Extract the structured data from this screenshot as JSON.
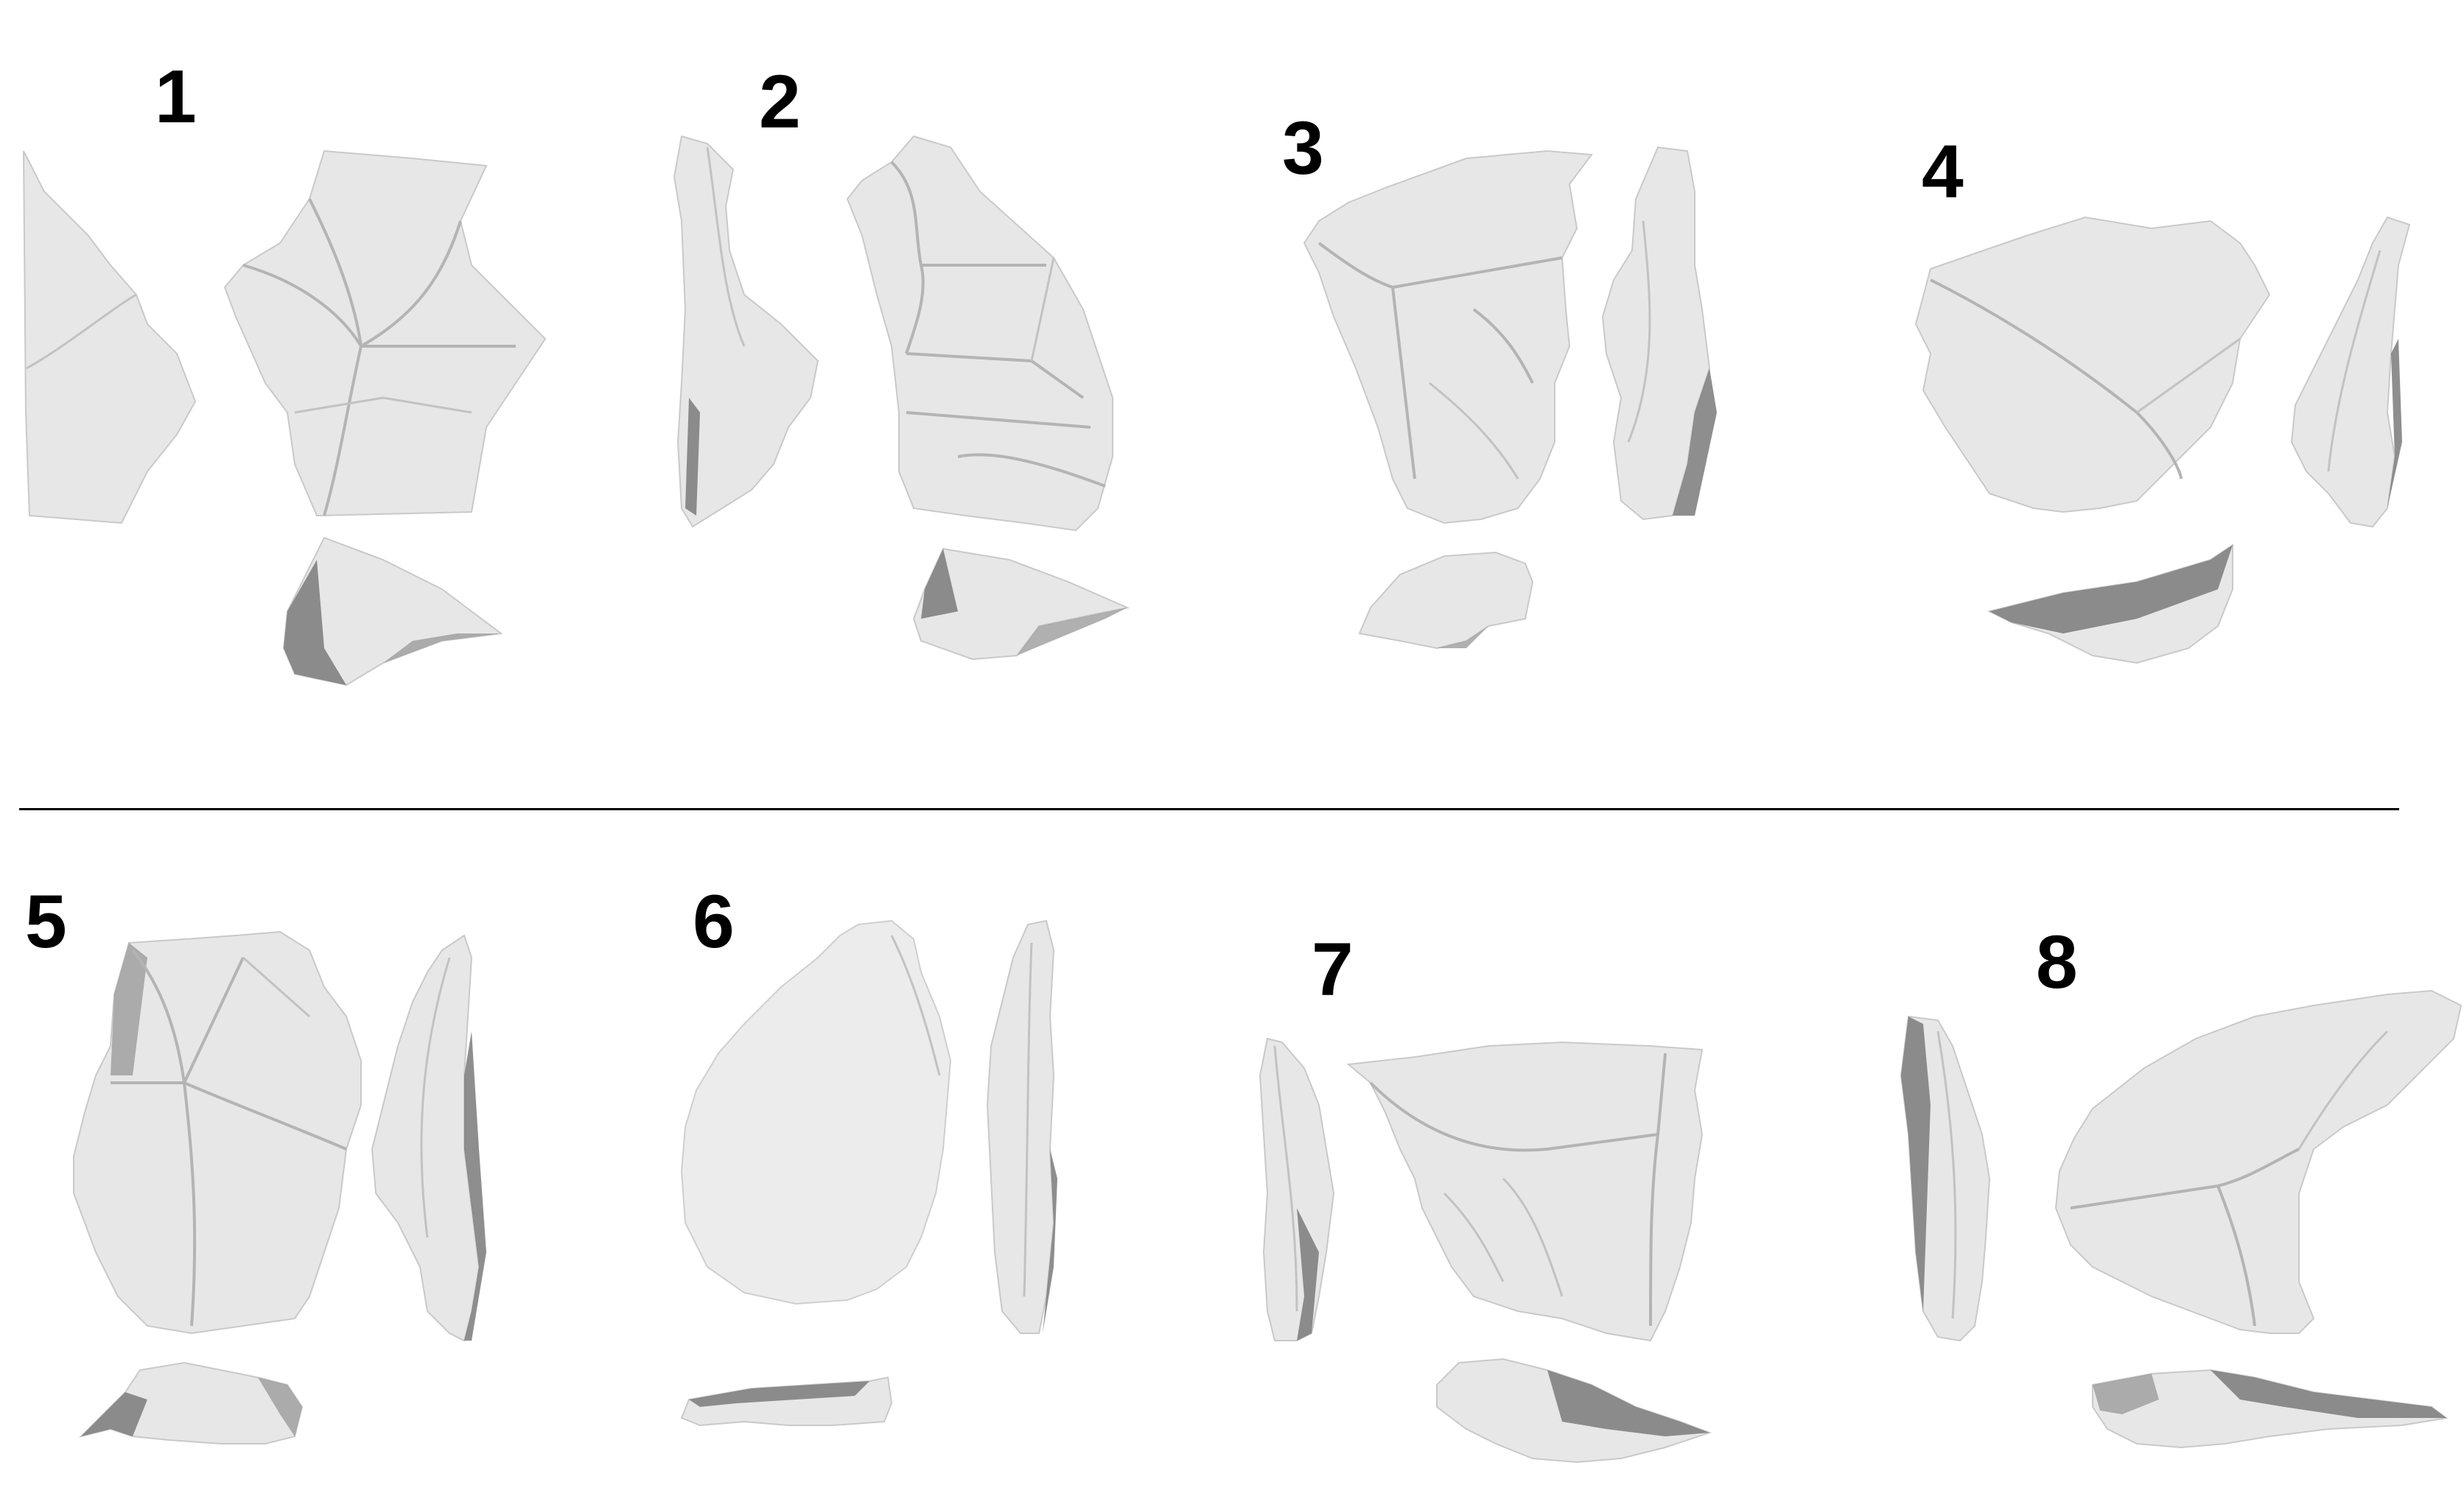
{
  "panels": [
    {
      "number": "1"
    },
    {
      "number": "2"
    },
    {
      "number": "3"
    },
    {
      "number": "4"
    },
    {
      "number": "5"
    },
    {
      "number": "6"
    },
    {
      "number": "7"
    },
    {
      "number": "8"
    }
  ],
  "colors": {
    "background": "#ffffff",
    "artifact_surface": "#e7e7e7",
    "artifact_shadow": "#7a7a7a",
    "text": "#000000",
    "divider": "#000000"
  }
}
